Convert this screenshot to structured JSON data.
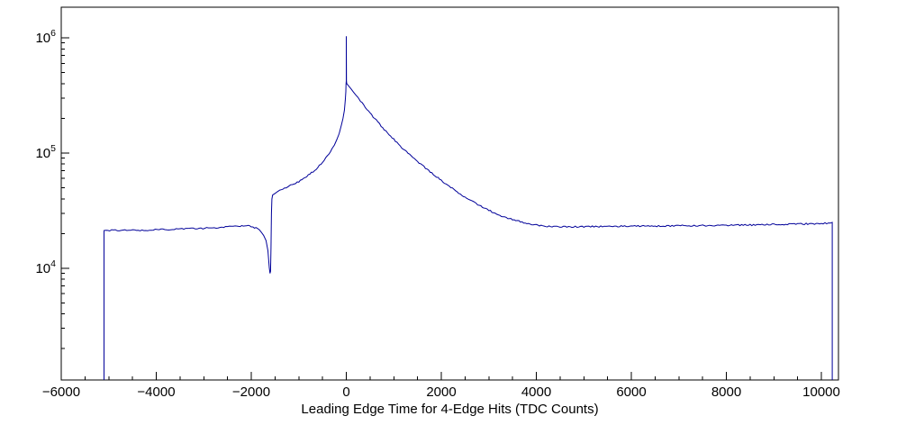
{
  "chart_data": {
    "type": "line",
    "title": "",
    "xlabel": "Leading Edge Time for 4-Edge Hits (TDC Counts)",
    "ylabel": "",
    "y_scale": "log",
    "grid": false,
    "legend": "none",
    "line_color": "#000099",
    "axis_color": "#000000",
    "x_range": [
      -6000,
      10360
    ],
    "y_range": [
      1070,
      1840000
    ],
    "x_ticks": [
      {
        "value": -6000,
        "label": "−6000"
      },
      {
        "value": -4000,
        "label": "−4000"
      },
      {
        "value": -2000,
        "label": "−2000"
      },
      {
        "value": 0,
        "label": "0"
      },
      {
        "value": 2000,
        "label": "2000"
      },
      {
        "value": 4000,
        "label": "4000"
      },
      {
        "value": 6000,
        "label": "6000"
      },
      {
        "value": 8000,
        "label": "8000"
      },
      {
        "value": 10000,
        "label": "10000"
      }
    ],
    "x_minor_step": 500,
    "y_ticks": [
      {
        "value": 10000,
        "base": "10",
        "exp": "4"
      },
      {
        "value": 100000,
        "base": "10",
        "exp": "5"
      },
      {
        "value": 1000000,
        "base": "10",
        "exp": "6"
      }
    ],
    "points": [
      [
        -5100,
        1070
      ],
      [
        -5100,
        21200
      ],
      [
        -4900,
        21300
      ],
      [
        -4700,
        21300
      ],
      [
        -4500,
        21400
      ],
      [
        -4300,
        21400
      ],
      [
        -4100,
        21500
      ],
      [
        -3900,
        21600
      ],
      [
        -3700,
        21700
      ],
      [
        -3500,
        21800
      ],
      [
        -3300,
        22000
      ],
      [
        -3100,
        22100
      ],
      [
        -2900,
        22300
      ],
      [
        -2700,
        22600
      ],
      [
        -2500,
        22900
      ],
      [
        -2300,
        23200
      ],
      [
        -2200,
        23300
      ],
      [
        -2100,
        23300
      ],
      [
        -2000,
        23000
      ],
      [
        -1900,
        22300
      ],
      [
        -1800,
        21000
      ],
      [
        -1740,
        19500
      ],
      [
        -1690,
        17500
      ],
      [
        -1650,
        14000
      ],
      [
        -1620,
        10000
      ],
      [
        -1605,
        9000
      ],
      [
        -1595,
        9500
      ],
      [
        -1585,
        15000
      ],
      [
        -1575,
        30000
      ],
      [
        -1565,
        40000
      ],
      [
        -1550,
        42500
      ],
      [
        -1500,
        44500
      ],
      [
        -1450,
        46000
      ],
      [
        -1400,
        47500
      ],
      [
        -1300,
        49500
      ],
      [
        -1200,
        51500
      ],
      [
        -1100,
        53800
      ],
      [
        -1000,
        56500
      ],
      [
        -900,
        59800
      ],
      [
        -800,
        63800
      ],
      [
        -700,
        68800
      ],
      [
        -600,
        75000
      ],
      [
        -500,
        83000
      ],
      [
        -400,
        93500
      ],
      [
        -300,
        108000
      ],
      [
        -250,
        118000
      ],
      [
        -200,
        131000
      ],
      [
        -150,
        149000
      ],
      [
        -100,
        175000
      ],
      [
        -70,
        198000
      ],
      [
        -40,
        235000
      ],
      [
        -20,
        290000
      ],
      [
        -10,
        340000
      ],
      [
        -5,
        395000
      ],
      [
        0,
        420000
      ],
      [
        0,
        1030000
      ],
      [
        3,
        420000
      ],
      [
        10,
        400000
      ],
      [
        50,
        382000
      ],
      [
        100,
        360000
      ],
      [
        150,
        338000
      ],
      [
        200,
        318000
      ],
      [
        250,
        300000
      ],
      [
        300,
        283000
      ],
      [
        400,
        250000
      ],
      [
        500,
        222000
      ],
      [
        600,
        198000
      ],
      [
        700,
        178000
      ],
      [
        800,
        160000
      ],
      [
        900,
        144500
      ],
      [
        1000,
        131000
      ],
      [
        1100,
        119000
      ],
      [
        1200,
        108500
      ],
      [
        1300,
        99500
      ],
      [
        1400,
        91500
      ],
      [
        1500,
        84500
      ],
      [
        1600,
        78000
      ],
      [
        1700,
        72000
      ],
      [
        1800,
        66800
      ],
      [
        1900,
        62000
      ],
      [
        2000,
        57700
      ],
      [
        2100,
        53800
      ],
      [
        2200,
        50200
      ],
      [
        2300,
        47000
      ],
      [
        2400,
        44100
      ],
      [
        2500,
        41500
      ],
      [
        2600,
        39100
      ],
      [
        2700,
        37000
      ],
      [
        2800,
        35000
      ],
      [
        2900,
        33300
      ],
      [
        3000,
        31800
      ],
      [
        3100,
        30400
      ],
      [
        3200,
        29200
      ],
      [
        3300,
        28100
      ],
      [
        3400,
        27200
      ],
      [
        3500,
        26400
      ],
      [
        3600,
        25700
      ],
      [
        3700,
        25100
      ],
      [
        3800,
        24600
      ],
      [
        3900,
        24100
      ],
      [
        4000,
        23700
      ],
      [
        4100,
        23400
      ],
      [
        4200,
        23200
      ],
      [
        4300,
        23000
      ],
      [
        4400,
        22900
      ],
      [
        4500,
        22800
      ],
      [
        4750,
        22800
      ],
      [
        5000,
        22900
      ],
      [
        5250,
        22950
      ],
      [
        5500,
        23000
      ],
      [
        5750,
        23050
      ],
      [
        6000,
        23100
      ],
      [
        6250,
        23150
      ],
      [
        6500,
        23200
      ],
      [
        6750,
        23250
      ],
      [
        7000,
        23300
      ],
      [
        7250,
        23350
      ],
      [
        7500,
        23400
      ],
      [
        7750,
        23450
      ],
      [
        8000,
        23500
      ],
      [
        8250,
        23600
      ],
      [
        8500,
        23700
      ],
      [
        8750,
        23800
      ],
      [
        9000,
        23900
      ],
      [
        9250,
        24000
      ],
      [
        9500,
        24100
      ],
      [
        9750,
        24250
      ],
      [
        10000,
        24400
      ],
      [
        10150,
        24600
      ],
      [
        10230,
        24600
      ],
      [
        10230,
        1070
      ]
    ]
  }
}
